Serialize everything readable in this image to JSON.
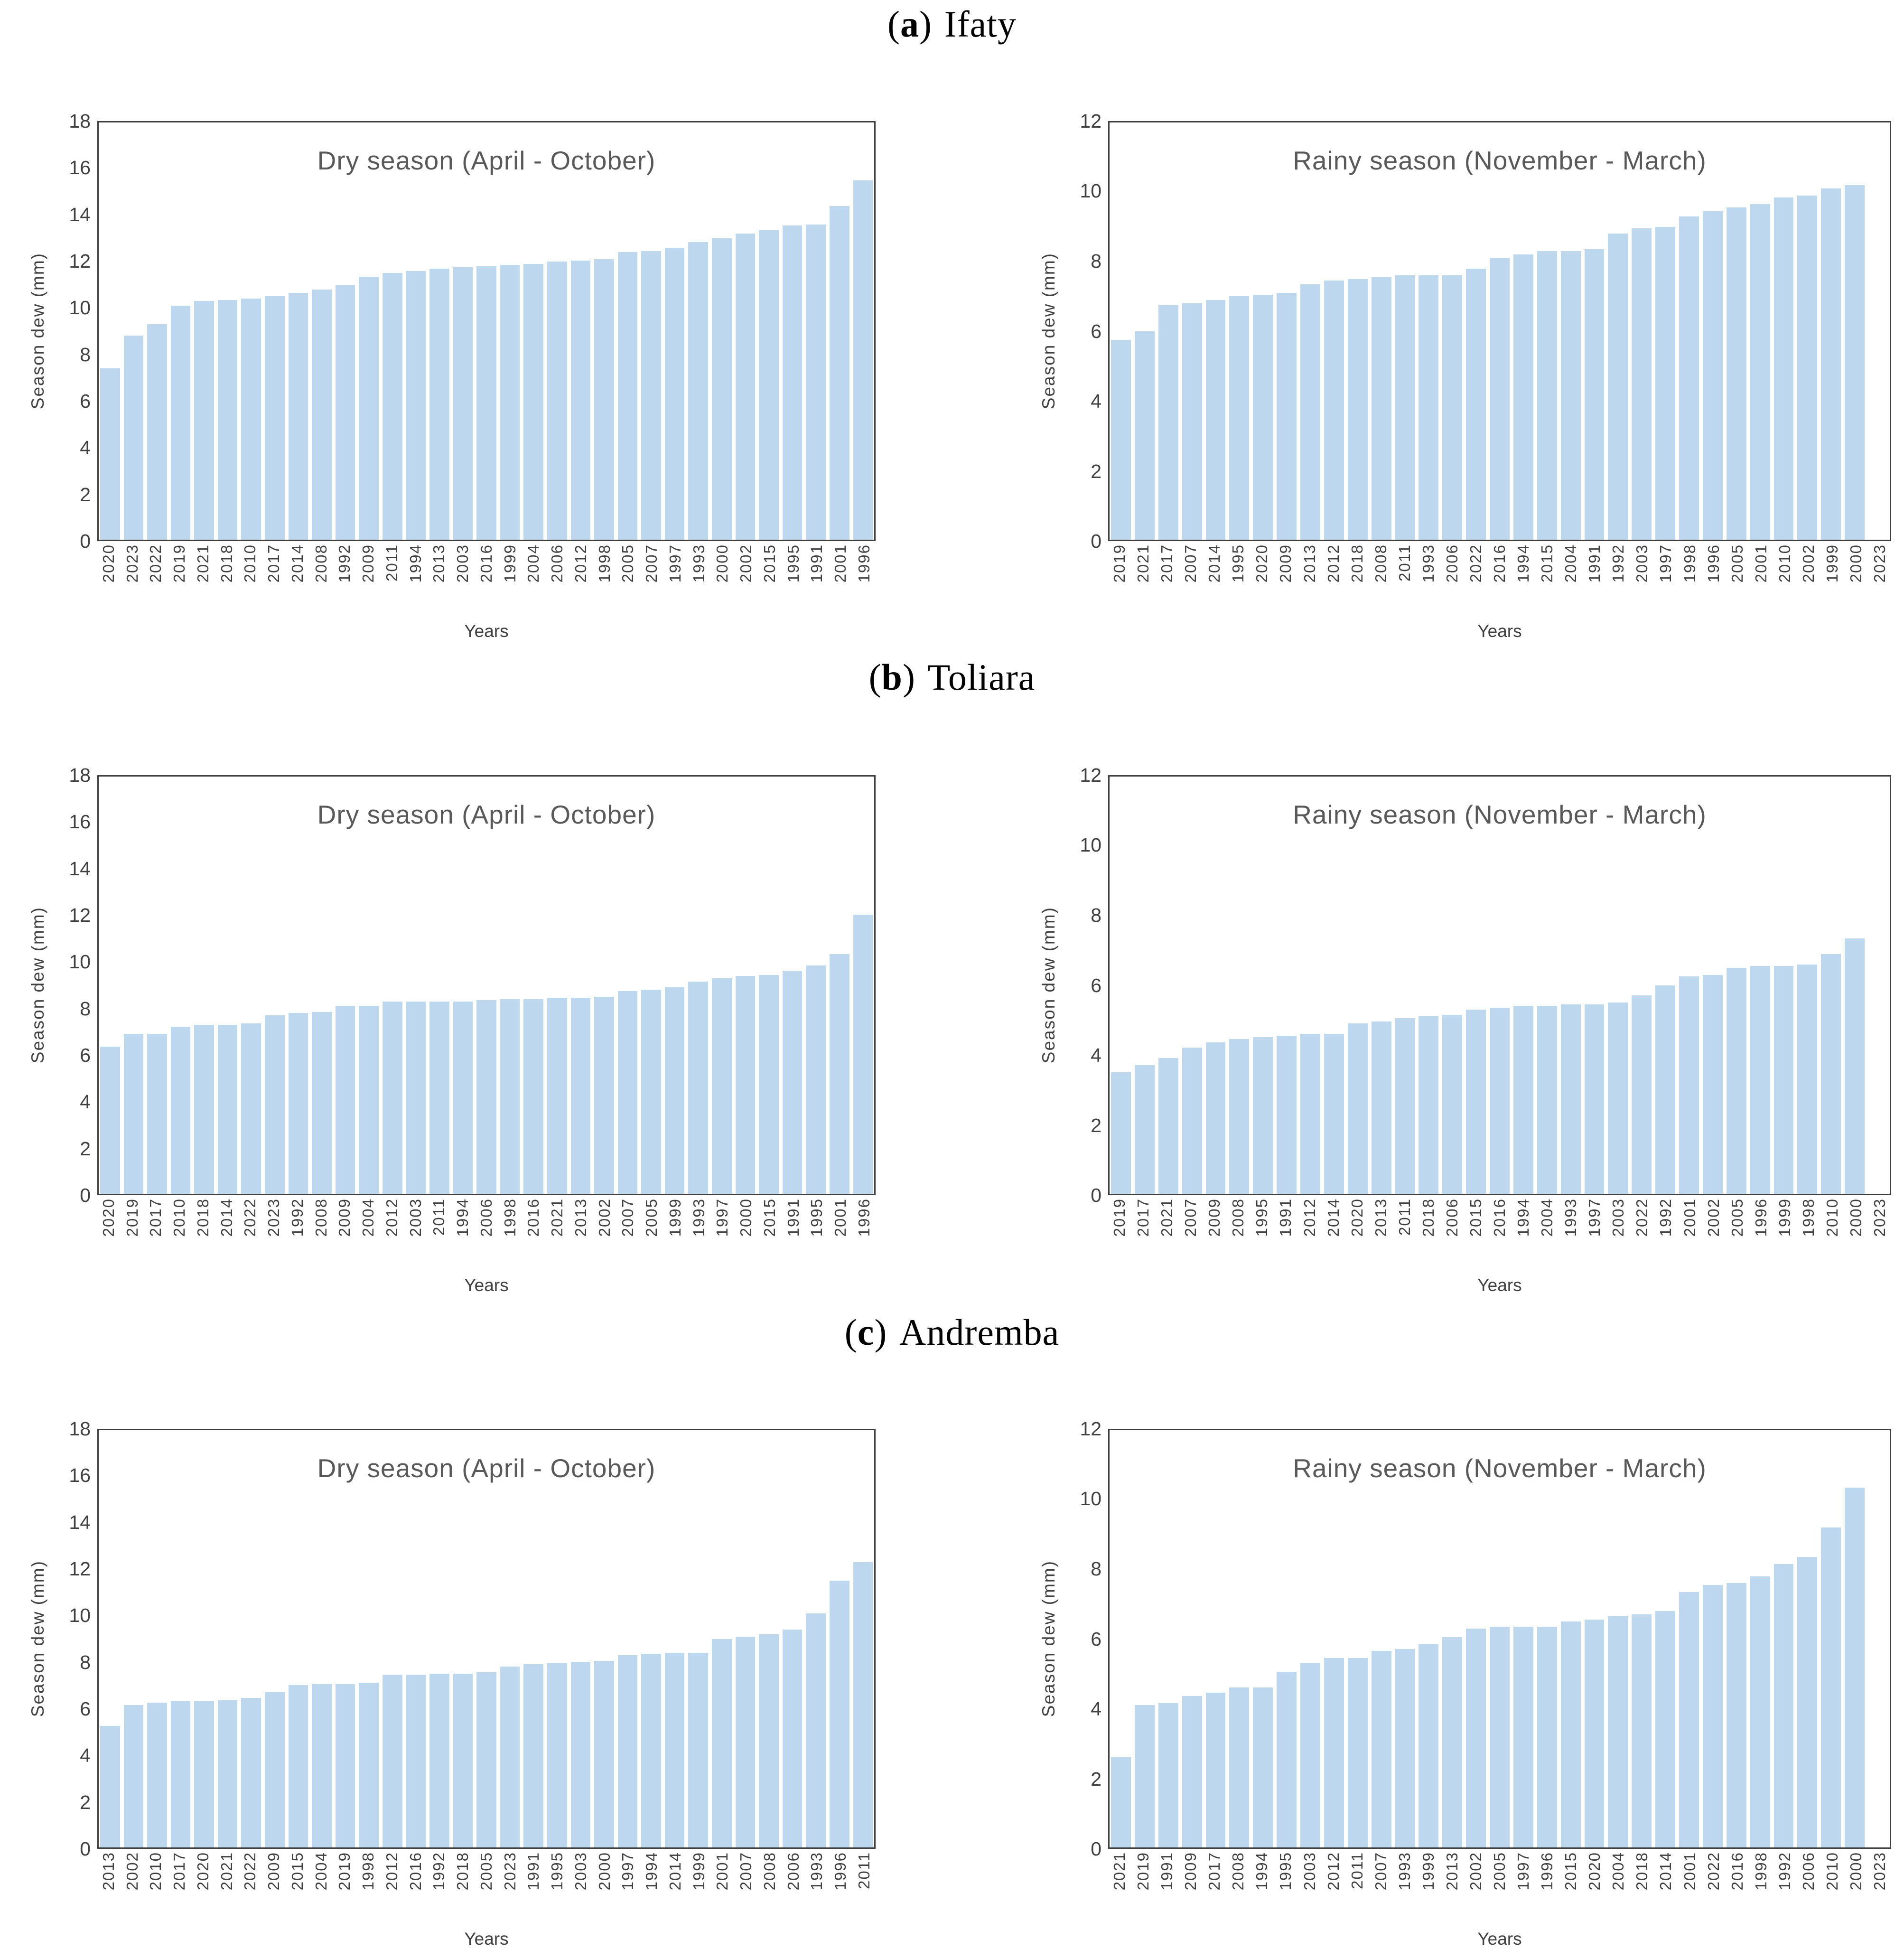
{
  "colors": {
    "bar_fill": "#BDD7EE",
    "plot_border": "#3f3f3f",
    "tick_text": "#404040",
    "title_text": "#595959",
    "heading_text": "#000000",
    "background": "#ffffff"
  },
  "sections": [
    {
      "open": "(",
      "letter": "a",
      "close": ")",
      "name": "Ifaty"
    },
    {
      "open": "(",
      "letter": "b",
      "close": ")",
      "name": "Toliara"
    },
    {
      "open": "(",
      "letter": "c",
      "close": ")",
      "name": "Andremba"
    }
  ],
  "chart_data": [
    {
      "type": "bar",
      "section": "(a) Ifaty",
      "season": "dry",
      "title": "Dry season (April - October)",
      "xlabel": "Years",
      "ylabel": "Season dew (mm)",
      "ylim": [
        0,
        18
      ],
      "ytick_step": 2,
      "grid": false,
      "legend": "none",
      "categories": [
        "2020",
        "2023",
        "2022",
        "2019",
        "2021",
        "2018",
        "2010",
        "2017",
        "2014",
        "2008",
        "1992",
        "2009",
        "2011",
        "1994",
        "2013",
        "2003",
        "2016",
        "1999",
        "2004",
        "2006",
        "2012",
        "1998",
        "2005",
        "2007",
        "1997",
        "1993",
        "2000",
        "2002",
        "2015",
        "1995",
        "1991",
        "2001",
        "1996"
      ],
      "values": [
        7.4,
        8.8,
        9.3,
        10.1,
        10.3,
        10.35,
        10.4,
        10.5,
        10.65,
        10.8,
        11.0,
        11.35,
        11.5,
        11.6,
        11.7,
        11.75,
        11.8,
        11.85,
        11.9,
        12.0,
        12.05,
        12.1,
        12.4,
        12.45,
        12.6,
        12.85,
        13.0,
        13.2,
        13.35,
        13.55,
        13.6,
        14.4,
        15.5
      ]
    },
    {
      "type": "bar",
      "section": "(a) Ifaty",
      "season": "rainy",
      "title": "Rainy season (November - March)",
      "xlabel": "Years",
      "ylabel": "Season dew (mm)",
      "ylim": [
        0,
        12
      ],
      "ytick_step": 2,
      "grid": false,
      "legend": "none",
      "categories": [
        "2019",
        "2021",
        "2017",
        "2007",
        "2014",
        "1995",
        "2020",
        "2009",
        "2013",
        "2012",
        "2018",
        "2008",
        "2011",
        "1993",
        "2006",
        "2022",
        "2016",
        "1994",
        "2015",
        "2004",
        "1991",
        "1992",
        "2003",
        "1997",
        "1998",
        "1996",
        "2005",
        "2001",
        "2010",
        "2002",
        "1999",
        "2000",
        "2023"
      ],
      "values": [
        5.75,
        6.0,
        6.75,
        6.8,
        6.9,
        7.0,
        7.05,
        7.1,
        7.35,
        7.45,
        7.5,
        7.55,
        7.6,
        7.6,
        7.6,
        7.8,
        8.1,
        8.2,
        8.3,
        8.3,
        8.35,
        8.8,
        8.95,
        9.0,
        9.3,
        9.45,
        9.55,
        9.65,
        9.85,
        9.9,
        10.1,
        10.2,
        0
      ]
    },
    {
      "type": "bar",
      "section": "(b) Toliara",
      "season": "dry",
      "title": "Dry season (April - October)",
      "xlabel": "Years",
      "ylabel": "Season dew (mm)",
      "ylim": [
        0,
        18
      ],
      "ytick_step": 2,
      "grid": false,
      "legend": "none",
      "categories": [
        "2020",
        "2019",
        "2017",
        "2010",
        "2018",
        "2014",
        "2022",
        "2023",
        "1992",
        "2008",
        "2009",
        "2004",
        "2012",
        "2003",
        "2011",
        "1994",
        "2006",
        "1998",
        "2016",
        "2021",
        "2013",
        "2002",
        "2007",
        "2005",
        "1999",
        "1993",
        "1997",
        "2000",
        "2015",
        "1991",
        "1995",
        "2001",
        "1996"
      ],
      "values": [
        6.35,
        6.9,
        6.9,
        7.2,
        7.3,
        7.3,
        7.35,
        7.7,
        7.8,
        7.85,
        8.1,
        8.1,
        8.3,
        8.3,
        8.3,
        8.3,
        8.35,
        8.4,
        8.4,
        8.45,
        8.45,
        8.5,
        8.75,
        8.8,
        8.9,
        9.15,
        9.3,
        9.4,
        9.45,
        9.6,
        9.85,
        10.35,
        12.05
      ]
    },
    {
      "type": "bar",
      "section": "(b) Toliara",
      "season": "rainy",
      "title": "Rainy season (November - March)",
      "xlabel": "Years",
      "ylabel": "Season dew (mm)",
      "ylim": [
        0,
        12
      ],
      "ytick_step": 2,
      "grid": false,
      "legend": "none",
      "categories": [
        "2019",
        "2017",
        "2021",
        "2007",
        "2009",
        "2008",
        "1995",
        "1991",
        "2012",
        "2014",
        "2020",
        "2013",
        "2011",
        "2018",
        "2006",
        "2015",
        "2016",
        "1994",
        "2004",
        "1993",
        "1997",
        "2003",
        "2022",
        "1992",
        "2001",
        "2002",
        "2005",
        "1996",
        "1999",
        "1998",
        "2010",
        "2000",
        "2023"
      ],
      "values": [
        3.5,
        3.7,
        3.9,
        4.2,
        4.35,
        4.45,
        4.5,
        4.55,
        4.6,
        4.6,
        4.9,
        4.95,
        5.05,
        5.1,
        5.15,
        5.3,
        5.35,
        5.4,
        5.4,
        5.45,
        5.45,
        5.5,
        5.7,
        6.0,
        6.25,
        6.3,
        6.5,
        6.55,
        6.55,
        6.6,
        6.9,
        7.35,
        0
      ]
    },
    {
      "type": "bar",
      "section": "(c) Andremba",
      "season": "dry",
      "title": "Dry season (April - October)",
      "xlabel": "Years",
      "ylabel": "Season dew (mm)",
      "ylim": [
        0,
        18
      ],
      "ytick_step": 2,
      "grid": false,
      "legend": "none",
      "categories": [
        "2013",
        "2002",
        "2010",
        "2017",
        "2020",
        "2021",
        "2022",
        "2009",
        "2015",
        "2004",
        "2019",
        "1998",
        "2012",
        "2016",
        "1992",
        "2018",
        "2005",
        "2023",
        "1991",
        "1995",
        "2003",
        "2000",
        "1997",
        "1994",
        "2014",
        "1999",
        "2001",
        "2007",
        "2008",
        "2006",
        "1993",
        "1996",
        "2011"
      ],
      "values": [
        5.25,
        6.15,
        6.25,
        6.3,
        6.3,
        6.35,
        6.45,
        6.7,
        7.0,
        7.05,
        7.05,
        7.1,
        7.45,
        7.45,
        7.5,
        7.5,
        7.55,
        7.8,
        7.9,
        7.95,
        8.0,
        8.05,
        8.3,
        8.35,
        8.4,
        8.4,
        9.0,
        9.1,
        9.2,
        9.4,
        10.1,
        11.5,
        12.3
      ]
    },
    {
      "type": "bar",
      "section": "(c) Andremba",
      "season": "rainy",
      "title": "Rainy season (November - March)",
      "xlabel": "Years",
      "ylabel": "Season dew (mm)",
      "ylim": [
        0,
        12
      ],
      "ytick_step": 2,
      "grid": false,
      "legend": "none",
      "categories": [
        "2021",
        "2019",
        "1991",
        "2009",
        "2017",
        "2008",
        "1994",
        "1995",
        "2003",
        "2012",
        "2011",
        "2007",
        "1993",
        "1999",
        "2013",
        "2002",
        "2005",
        "1997",
        "1996",
        "2015",
        "2020",
        "2004",
        "2018",
        "2014",
        "2001",
        "2022",
        "2016",
        "1998",
        "1992",
        "2006",
        "2010",
        "2000",
        "2023"
      ],
      "values": [
        2.6,
        4.1,
        4.15,
        4.35,
        4.45,
        4.6,
        4.6,
        5.05,
        5.3,
        5.45,
        5.45,
        5.65,
        5.7,
        5.85,
        6.05,
        6.3,
        6.35,
        6.35,
        6.35,
        6.5,
        6.55,
        6.65,
        6.7,
        6.8,
        7.35,
        7.55,
        7.6,
        7.8,
        8.15,
        8.35,
        9.2,
        10.35,
        0
      ]
    }
  ]
}
